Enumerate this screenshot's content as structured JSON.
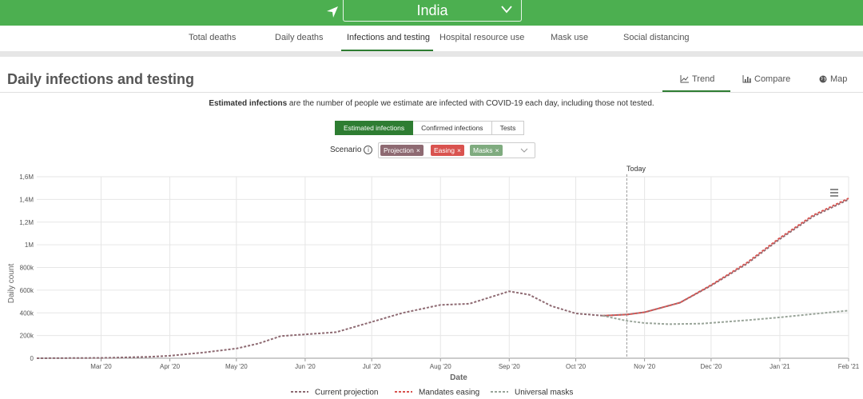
{
  "header": {
    "country": "India"
  },
  "nav": {
    "items": [
      {
        "label": "Total deaths"
      },
      {
        "label": "Daily deaths"
      },
      {
        "label": "Infections and testing"
      },
      {
        "label": "Hospital resource use"
      },
      {
        "label": "Mask use"
      },
      {
        "label": "Social distancing"
      }
    ],
    "active_index": 2
  },
  "page": {
    "title": "Daily infections and testing",
    "view_tabs": [
      {
        "label": "Trend",
        "icon": "line-chart-icon"
      },
      {
        "label": "Compare",
        "icon": "bar-chart-icon"
      },
      {
        "label": "Map",
        "icon": "globe-icon"
      }
    ],
    "description_bold": "Estimated infections",
    "description_rest": " are the number of people we estimate are infected with COVID-19 each day, including those not tested."
  },
  "metric_buttons": [
    {
      "label": "Estimated infections",
      "active": true
    },
    {
      "label": "Confirmed infections",
      "active": false
    },
    {
      "label": "Tests",
      "active": false
    }
  ],
  "scenario": {
    "label": "Scenario",
    "chips": [
      {
        "label": "Projection",
        "color": "#8e6a72"
      },
      {
        "label": "Easing",
        "color": "#d9534f"
      },
      {
        "label": "Masks",
        "color": "#7fab7f"
      }
    ]
  },
  "chart_data": {
    "type": "line",
    "xlabel": "Date",
    "ylabel": "Daily count",
    "ylim": [
      0,
      1600000
    ],
    "y_ticks": [
      "0",
      "200k",
      "400k",
      "600k",
      "800k",
      "1M",
      "1,2M",
      "1,4M",
      "1,6M"
    ],
    "x_ticks": [
      "Mar '20",
      "Apr '20",
      "May '20",
      "Jun '20",
      "Jul '20",
      "Aug '20",
      "Sep '20",
      "Oct '20",
      "Nov '20",
      "Dec '20",
      "Jan '21",
      "Feb '21"
    ],
    "x_tick_days": [
      29,
      60,
      90,
      121,
      151,
      182,
      213,
      243,
      274,
      304,
      335,
      366
    ],
    "x_range_days": [
      0,
      366
    ],
    "today_label": "Today",
    "today_day": 266,
    "grid": true,
    "legend_position": "bottom",
    "series": [
      {
        "name": "Current projection",
        "color": "#8e6a72",
        "points": [
          [
            0,
            0
          ],
          [
            30,
            3000
          ],
          [
            50,
            12000
          ],
          [
            60,
            22000
          ],
          [
            75,
            50000
          ],
          [
            90,
            85000
          ],
          [
            100,
            130000
          ],
          [
            110,
            195000
          ],
          [
            121,
            210000
          ],
          [
            135,
            230000
          ],
          [
            151,
            320000
          ],
          [
            165,
            400000
          ],
          [
            182,
            470000
          ],
          [
            195,
            480000
          ],
          [
            213,
            590000
          ],
          [
            222,
            560000
          ],
          [
            232,
            460000
          ],
          [
            243,
            395000
          ],
          [
            255,
            375000
          ],
          [
            266,
            385000
          ],
          [
            274,
            405000
          ],
          [
            290,
            490000
          ],
          [
            304,
            640000
          ],
          [
            320,
            830000
          ],
          [
            335,
            1050000
          ],
          [
            350,
            1250000
          ],
          [
            366,
            1400000
          ]
        ]
      },
      {
        "name": "Mandates easing",
        "color": "#d9534f",
        "points": [
          [
            255,
            375000
          ],
          [
            266,
            385000
          ],
          [
            274,
            405000
          ],
          [
            290,
            490000
          ],
          [
            304,
            645000
          ],
          [
            320,
            840000
          ],
          [
            335,
            1060000
          ],
          [
            350,
            1260000
          ],
          [
            366,
            1410000
          ]
        ]
      },
      {
        "name": "Universal masks",
        "color": "#9aa59a",
        "points": [
          [
            255,
            375000
          ],
          [
            266,
            330000
          ],
          [
            274,
            310000
          ],
          [
            285,
            300000
          ],
          [
            300,
            305000
          ],
          [
            320,
            335000
          ],
          [
            335,
            360000
          ],
          [
            350,
            390000
          ],
          [
            366,
            420000
          ]
        ]
      }
    ]
  }
}
